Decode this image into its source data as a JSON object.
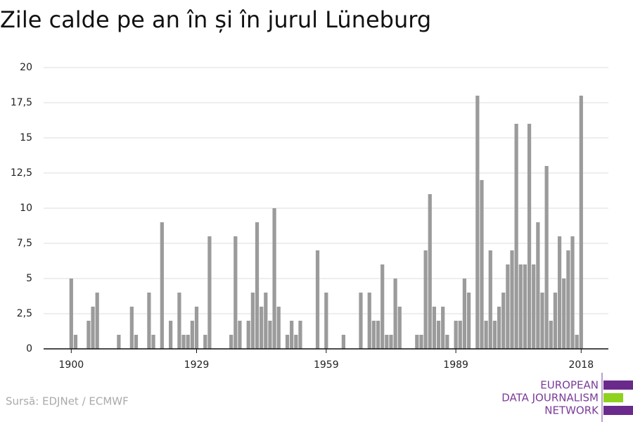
{
  "chart_data": {
    "type": "bar",
    "title": "Zile calde pe an în și în jurul Lüneburg",
    "source": "Sursă: EDJNet / ECMWF",
    "logo": [
      "EUROPEAN",
      "DATA JOURNALISM",
      "NETWORK"
    ],
    "color": "#9b9b9b",
    "x": [
      1900,
      1901,
      1902,
      1903,
      1904,
      1905,
      1906,
      1907,
      1908,
      1909,
      1910,
      1911,
      1912,
      1913,
      1914,
      1915,
      1916,
      1917,
      1918,
      1919,
      1920,
      1921,
      1922,
      1923,
      1924,
      1925,
      1926,
      1927,
      1928,
      1929,
      1930,
      1931,
      1932,
      1933,
      1934,
      1935,
      1936,
      1937,
      1938,
      1939,
      1940,
      1941,
      1942,
      1943,
      1944,
      1945,
      1946,
      1947,
      1948,
      1949,
      1950,
      1951,
      1952,
      1953,
      1954,
      1955,
      1956,
      1957,
      1958,
      1959,
      1960,
      1961,
      1962,
      1963,
      1964,
      1965,
      1966,
      1967,
      1968,
      1969,
      1970,
      1971,
      1972,
      1973,
      1974,
      1975,
      1976,
      1977,
      1978,
      1979,
      1980,
      1981,
      1982,
      1983,
      1984,
      1985,
      1986,
      1987,
      1988,
      1989,
      1990,
      1991,
      1992,
      1993,
      1994,
      1995,
      1996,
      1997,
      1998,
      1999,
      2000,
      2001,
      2002,
      2003,
      2004,
      2005,
      2006,
      2007,
      2008,
      2009,
      2010,
      2011,
      2012,
      2013,
      2014,
      2015,
      2016,
      2017,
      2018
    ],
    "values": [
      5,
      1,
      0,
      0,
      2,
      3,
      4,
      0,
      0,
      0,
      0,
      1,
      0,
      0,
      3,
      1,
      0,
      0,
      4,
      1,
      0,
      9,
      0,
      2,
      0,
      4,
      1,
      1,
      2,
      3,
      0,
      1,
      8,
      0,
      0,
      0,
      0,
      1,
      8,
      2,
      0,
      2,
      4,
      9,
      3,
      4,
      2,
      10,
      3,
      0,
      1,
      2,
      1,
      2,
      0,
      0,
      0,
      7,
      0,
      4,
      0,
      0,
      0,
      1,
      0,
      0,
      0,
      4,
      0,
      4,
      2,
      2,
      6,
      1,
      1,
      5,
      3,
      0,
      0,
      0,
      1,
      1,
      7,
      11,
      3,
      2,
      3,
      1,
      0,
      2,
      2,
      5,
      4,
      0,
      18,
      12,
      2,
      7,
      2,
      3,
      4,
      6,
      7,
      16,
      6,
      6,
      16,
      6,
      9,
      4,
      13,
      2,
      4,
      8,
      5,
      7,
      8,
      1,
      18
    ],
    "xlim": [
      1893.6,
      2024.3
    ],
    "xticks": [
      1900,
      1929,
      1959,
      1989,
      2018
    ],
    "ylim": [
      0,
      20
    ],
    "yticks": [
      0,
      {
        "value": 2.5,
        "label": "2,5"
      },
      5,
      {
        "value": 7.5,
        "label": "7,5"
      },
      10,
      {
        "value": 12.5,
        "label": "12,5"
      },
      15,
      {
        "value": 17.5,
        "label": "17,5"
      },
      20
    ],
    "grid": true
  }
}
